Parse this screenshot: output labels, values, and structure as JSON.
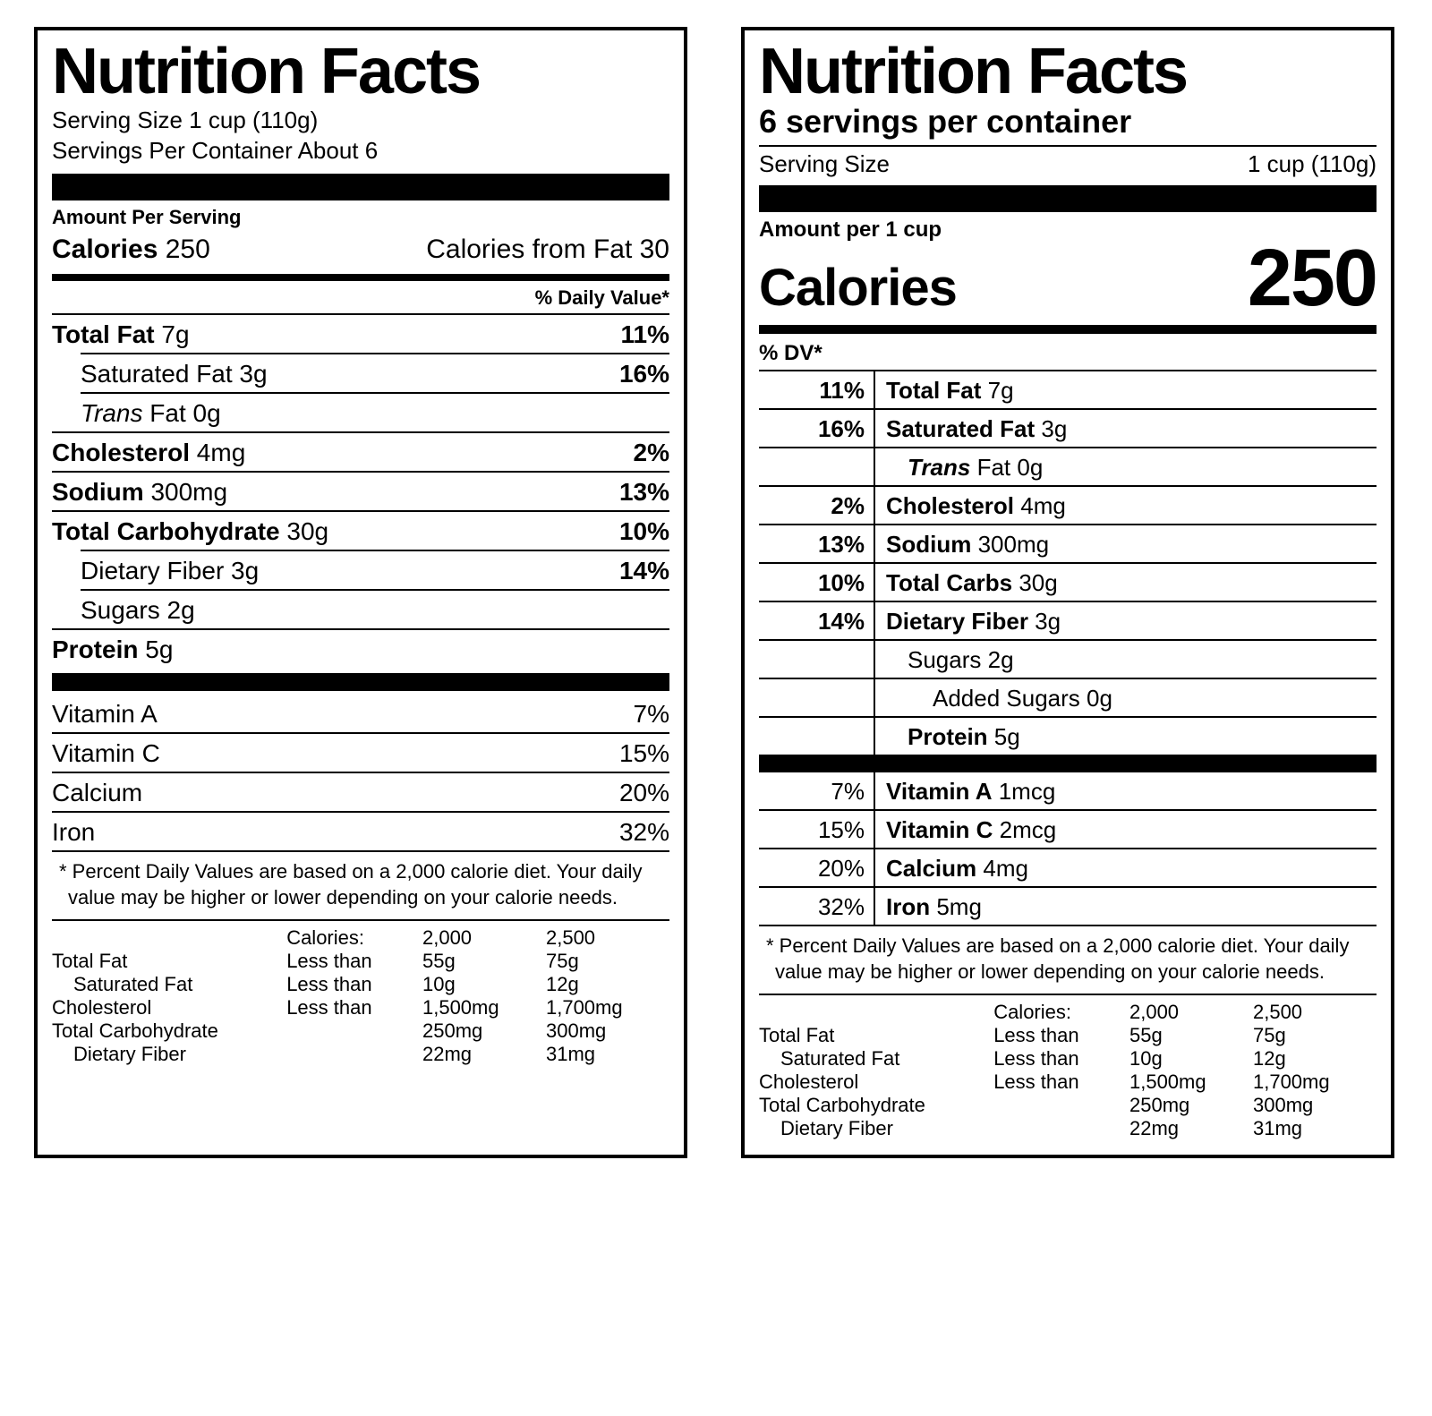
{
  "labelA": {
    "title": "Nutrition Facts",
    "serving_size": "Serving Size 1 cup (110g)",
    "servings_per": "Servings Per Container About 6",
    "amount_per": "Amount Per Serving",
    "calories_label": "Calories",
    "calories_value": "250",
    "calories_from_fat": "Calories from Fat 30",
    "dv_header": "% Daily Value*",
    "nutrients": [
      {
        "name": "Total Fat",
        "amt": "7g",
        "pct": "11%",
        "bold": true,
        "indent": 0
      },
      {
        "name": "Saturated Fat",
        "amt": "3g",
        "pct": "16%",
        "bold": false,
        "indent": 1
      },
      {
        "name": "Trans",
        "name2": " Fat",
        "amt": "0g",
        "pct": "",
        "bold": false,
        "italic": true,
        "indent": 1
      },
      {
        "name": "Cholesterol",
        "amt": "4mg",
        "pct": "2%",
        "bold": true,
        "indent": 0
      },
      {
        "name": "Sodium",
        "amt": "300mg",
        "pct": "13%",
        "bold": true,
        "indent": 0
      },
      {
        "name": "Total Carbohydrate",
        "amt": "30g",
        "pct": "10%",
        "bold": true,
        "indent": 0
      },
      {
        "name": "Dietary Fiber",
        "amt": "3g",
        "pct": "14%",
        "bold": false,
        "indent": 1
      },
      {
        "name": "Sugars",
        "amt": "2g",
        "pct": "",
        "bold": false,
        "indent": 1
      },
      {
        "name": "Protein",
        "amt": "5g",
        "pct": "",
        "bold": true,
        "indent": 0
      }
    ],
    "vitamins": [
      {
        "name": "Vitamin A",
        "pct": "7%"
      },
      {
        "name": "Vitamin C",
        "pct": "15%"
      },
      {
        "name": "Calcium",
        "pct": "20%"
      },
      {
        "name": "Iron",
        "pct": "32%"
      }
    ],
    "footnote": "* Percent Daily Values are based on a 2,000 calorie diet. Your daily value may be higher or lower depending on your calorie needs.",
    "ref_header": [
      "",
      "Calories:",
      "2,000",
      "2,500"
    ],
    "ref_rows": [
      [
        "Total Fat",
        "Less than",
        "55g",
        "75g",
        0
      ],
      [
        "Saturated Fat",
        "Less than",
        "10g",
        "12g",
        1
      ],
      [
        "Cholesterol",
        "Less than",
        "1,500mg",
        "1,700mg",
        0
      ],
      [
        "Total Carbohydrate",
        "",
        "250mg",
        "300mg",
        0
      ],
      [
        "Dietary Fiber",
        "",
        "22mg",
        "31mg",
        1
      ]
    ]
  },
  "labelB": {
    "title": "Nutrition Facts",
    "servings_per": "6 servings per container",
    "serving_size_label": "Serving Size",
    "serving_size_value": "1 cup (110g)",
    "amount_per": "Amount per 1 cup",
    "calories_label": "Calories",
    "calories_value": "250",
    "dv_header": "% DV*",
    "nutrients": [
      {
        "pct": "11%",
        "name": "Total Fat",
        "amt": "7g",
        "bold": true,
        "indent": 0
      },
      {
        "pct": "16%",
        "name": "Saturated Fat",
        "amt": "3g",
        "bold": true,
        "indent": 0
      },
      {
        "pct": "",
        "name": "Trans",
        "name2": " Fat",
        "amt": "0g",
        "italic": true,
        "indent": 1
      },
      {
        "pct": "2%",
        "name": "Cholesterol",
        "amt": "4mg",
        "bold": true,
        "indent": 0
      },
      {
        "pct": "13%",
        "name": "Sodium",
        "amt": "300mg",
        "bold": true,
        "indent": 0
      },
      {
        "pct": "10%",
        "name": "Total Carbs",
        "amt": "30g",
        "bold": true,
        "indent": 0
      },
      {
        "pct": "14%",
        "name": "Dietary Fiber",
        "amt": "3g",
        "bold": true,
        "indent": 0
      },
      {
        "pct": "",
        "name": "Sugars",
        "amt": "2g",
        "bold": false,
        "indent": 1
      },
      {
        "pct": "",
        "name": "Added Sugars",
        "amt": "0g",
        "bold": false,
        "indent": 2
      },
      {
        "pct": "",
        "name": "Protein",
        "amt": "5g",
        "bold": true,
        "indent": 1
      }
    ],
    "vitamins": [
      {
        "pct": "7%",
        "name": "Vitamin A",
        "amt": "1mcg"
      },
      {
        "pct": "15%",
        "name": "Vitamin C",
        "amt": "2mcg"
      },
      {
        "pct": "20%",
        "name": "Calcium",
        "amt": "4mg"
      },
      {
        "pct": "32%",
        "name": "Iron",
        "amt": "5mg"
      }
    ],
    "footnote": "* Percent Daily Values are based on a 2,000 calorie diet. Your daily value may be higher or lower depending on your calorie needs.",
    "ref_header": [
      "",
      "Calories:",
      "2,000",
      "2,500"
    ],
    "ref_rows": [
      [
        "Total Fat",
        "Less than",
        "55g",
        "75g",
        0
      ],
      [
        "Saturated Fat",
        "Less than",
        "10g",
        "12g",
        1
      ],
      [
        "Cholesterol",
        "Less than",
        "1,500mg",
        "1,700mg",
        0
      ],
      [
        "Total Carbohydrate",
        "",
        "250mg",
        "300mg",
        0
      ],
      [
        "Dietary Fiber",
        "",
        "22mg",
        "31mg",
        1
      ]
    ]
  }
}
